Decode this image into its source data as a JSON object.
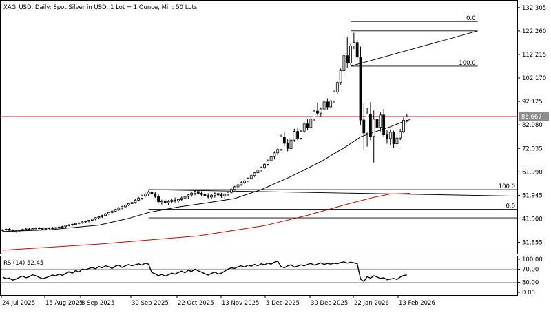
{
  "chart_data": [
    {
      "type": "candlestick",
      "title": "XAG_USD, Daily:  Spot Silver in USD, 1 Lot = 1 Ounce, Min: 50 Lots",
      "symbol": "XAG_USD",
      "timeframe": "Daily",
      "description": "Spot Silver in USD, 1 Lot = 1 Ounce, Min: 50 Lots",
      "ylim": [
        27.0,
        135.5
      ],
      "yticks": [
        "132.305",
        "122.260",
        "112.215",
        "102.170",
        "92.125",
        "82.080",
        "72.035",
        "61.990",
        "51.945",
        "41.900",
        "31.855"
      ],
      "xticks": [
        "24 Jul 2025",
        "15 Aug 2025",
        "8 Sep 2025",
        "30 Sep 2025",
        "22 Oct 2025",
        "13 Nov 2025",
        "5 Dec 2025",
        "30 Dec 2025",
        "22 Jan 2026",
        "13 Feb 2026"
      ],
      "current_price": "85.667",
      "current_price_value": 85.667,
      "grid": false,
      "colors": {
        "candle": "#000000",
        "price_line": "#b22222",
        "ma_fast": "#000000",
        "ma_slow": "#d00000",
        "price_tag_bg": "#8c8c8c"
      },
      "series": [
        {
          "kind": "ohlc",
          "values": [
            [
              36.9,
              37.6,
              36.4,
              37.2
            ],
            [
              37.2,
              38.0,
              36.9,
              37.5
            ],
            [
              37.5,
              37.9,
              36.8,
              37.0
            ],
            [
              37.0,
              37.4,
              36.2,
              36.6
            ],
            [
              36.6,
              37.1,
              36.0,
              36.8
            ],
            [
              36.8,
              37.3,
              36.3,
              37.0
            ],
            [
              37.0,
              37.7,
              36.7,
              37.4
            ],
            [
              37.4,
              38.1,
              37.1,
              37.6
            ],
            [
              37.6,
              38.0,
              37.0,
              37.3
            ],
            [
              37.3,
              37.9,
              36.9,
              37.7
            ],
            [
              37.7,
              38.3,
              37.3,
              38.0
            ],
            [
              38.0,
              38.4,
              37.4,
              37.8
            ],
            [
              37.8,
              38.2,
              37.1,
              37.5
            ],
            [
              37.5,
              38.0,
              37.0,
              37.8
            ],
            [
              37.8,
              38.3,
              37.4,
              38.1
            ],
            [
              38.1,
              38.5,
              37.5,
              37.9
            ],
            [
              37.9,
              38.4,
              37.4,
              38.2
            ],
            [
              38.2,
              38.7,
              37.8,
              38.4
            ],
            [
              38.4,
              38.9,
              38.0,
              38.6
            ],
            [
              38.6,
              39.4,
              38.2,
              39.1
            ],
            [
              39.1,
              39.6,
              38.7,
              39.3
            ],
            [
              39.3,
              39.9,
              38.8,
              39.5
            ],
            [
              39.5,
              40.2,
              39.1,
              39.9
            ],
            [
              39.9,
              40.5,
              39.4,
              40.2
            ],
            [
              40.2,
              40.8,
              39.8,
              40.6
            ],
            [
              40.6,
              41.2,
              40.1,
              40.9
            ],
            [
              40.9,
              41.5,
              40.4,
              41.3
            ],
            [
              41.3,
              42.0,
              40.9,
              41.8
            ],
            [
              41.8,
              42.6,
              41.3,
              42.4
            ],
            [
              42.4,
              43.1,
              41.9,
              42.8
            ],
            [
              42.8,
              43.6,
              42.3,
              43.3
            ],
            [
              43.3,
              44.4,
              42.9,
              44.0
            ],
            [
              44.0,
              45.0,
              43.6,
              44.6
            ],
            [
              44.6,
              45.6,
              44.1,
              45.2
            ],
            [
              45.2,
              46.2,
              44.8,
              45.9
            ],
            [
              45.9,
              46.9,
              45.4,
              46.5
            ],
            [
              46.5,
              47.5,
              46.0,
              47.1
            ],
            [
              47.1,
              48.1,
              46.6,
              47.8
            ],
            [
              47.8,
              48.8,
              47.3,
              48.4
            ],
            [
              48.4,
              49.3,
              47.8,
              48.9
            ],
            [
              48.9,
              50.3,
              48.4,
              49.9
            ],
            [
              49.9,
              51.3,
              49.3,
              50.8
            ],
            [
              50.8,
              52.2,
              50.1,
              51.7
            ],
            [
              51.7,
              53.1,
              51.0,
              52.5
            ],
            [
              52.5,
              54.0,
              51.8,
              53.3
            ],
            [
              53.3,
              54.5,
              52.0,
              52.6
            ],
            [
              52.6,
              53.4,
              50.8,
              51.4
            ],
            [
              51.4,
              52.3,
              48.9,
              49.2
            ],
            [
              49.2,
              50.1,
              48.0,
              49.6
            ],
            [
              49.6,
              50.6,
              48.4,
              48.8
            ],
            [
              48.8,
              49.9,
              47.8,
              49.3
            ],
            [
              49.3,
              50.5,
              48.6,
              49.9
            ],
            [
              49.9,
              51.0,
              48.9,
              49.5
            ],
            [
              49.5,
              50.6,
              48.8,
              50.2
            ],
            [
              50.2,
              51.4,
              49.4,
              50.8
            ],
            [
              50.8,
              52.0,
              49.8,
              51.5
            ],
            [
              51.5,
              52.6,
              50.6,
              52.1
            ],
            [
              52.1,
              53.4,
              51.3,
              52.9
            ],
            [
              52.9,
              54.1,
              52.0,
              53.6
            ],
            [
              53.6,
              54.4,
              52.4,
              52.8
            ],
            [
              52.8,
              53.7,
              51.6,
              52.3
            ],
            [
              52.3,
              53.2,
              51.1,
              51.8
            ],
            [
              51.8,
              52.8,
              50.7,
              51.2
            ],
            [
              51.2,
              52.4,
              50.3,
              52.0
            ],
            [
              52.0,
              53.2,
              51.0,
              52.7
            ],
            [
              52.7,
              53.6,
              51.7,
              52.1
            ],
            [
              52.1,
              53.0,
              50.9,
              51.6
            ],
            [
              51.6,
              52.8,
              50.6,
              52.4
            ],
            [
              52.4,
              53.6,
              51.5,
              53.2
            ],
            [
              53.2,
              54.9,
              52.7,
              54.5
            ],
            [
              54.5,
              56.0,
              54.0,
              55.6
            ],
            [
              55.6,
              57.0,
              55.0,
              56.5
            ],
            [
              56.5,
              57.9,
              56.0,
              57.4
            ],
            [
              57.4,
              58.6,
              56.8,
              58.1
            ],
            [
              58.1,
              59.6,
              57.6,
              59.2
            ],
            [
              59.2,
              60.9,
              58.7,
              60.4
            ],
            [
              60.4,
              62.1,
              59.8,
              61.6
            ],
            [
              61.6,
              63.3,
              61.0,
              62.8
            ],
            [
              62.8,
              64.3,
              62.2,
              63.9
            ],
            [
              63.9,
              65.7,
              63.3,
              65.2
            ],
            [
              65.2,
              67.3,
              64.6,
              66.8
            ],
            [
              66.8,
              69.2,
              66.1,
              68.5
            ],
            [
              68.5,
              70.8,
              67.3,
              70.1
            ],
            [
              70.1,
              72.4,
              69.0,
              71.6
            ],
            [
              71.6,
              77.9,
              71.0,
              77.0
            ],
            [
              77.0,
              79.2,
              73.0,
              74.2
            ],
            [
              74.2,
              76.0,
              70.8,
              72.0
            ],
            [
              72.0,
              76.5,
              71.0,
              75.6
            ],
            [
              75.6,
              80.4,
              74.8,
              79.3
            ],
            [
              79.3,
              81.0,
              75.5,
              76.4
            ],
            [
              76.4,
              80.1,
              75.8,
              79.4
            ],
            [
              79.4,
              83.2,
              78.6,
              82.5
            ],
            [
              82.5,
              84.6,
              79.8,
              81.0
            ],
            [
              81.0,
              85.3,
              80.3,
              84.7
            ],
            [
              84.7,
              88.6,
              83.9,
              88.0
            ],
            [
              88.0,
              91.5,
              86.2,
              87.1
            ],
            [
              87.1,
              89.6,
              85.8,
              88.9
            ],
            [
              88.9,
              92.8,
              88.1,
              91.9
            ],
            [
              91.9,
              93.5,
              88.6,
              89.8
            ],
            [
              89.8,
              92.9,
              89.1,
              92.3
            ],
            [
              92.3,
              96.8,
              91.6,
              96.1
            ],
            [
              96.1,
              101.0,
              95.4,
              100.2
            ],
            [
              100.2,
              106.2,
              99.3,
              105.3
            ],
            [
              105.3,
              112.8,
              104.6,
              111.7
            ],
            [
              111.7,
              119.6,
              106.6,
              108.5
            ],
            [
              108.5,
              116.8,
              107.6,
              115.9
            ],
            [
              115.9,
              121.5,
              114.6,
              117.3
            ],
            [
              117.3,
              118.5,
              110.2,
              111.1
            ],
            [
              111.1,
              115.6,
              82.0,
              84.2
            ],
            [
              84.2,
              91.2,
              71.5,
              78.6
            ],
            [
              78.6,
              89.5,
              72.8,
              86.7
            ],
            [
              86.7,
              91.8,
              75.6,
              77.2
            ],
            [
              77.2,
              88.2,
              66.0,
              84.5
            ],
            [
              84.5,
              89.3,
              80.0,
              81.1
            ],
            [
              81.1,
              87.6,
              79.3,
              86.3
            ],
            [
              86.3,
              88.9,
              77.0,
              77.8
            ],
            [
              77.8,
              79.8,
              74.0,
              76.3
            ],
            [
              76.3,
              80.2,
              73.5,
              78.9
            ],
            [
              78.9,
              79.6,
              72.2,
              74.0
            ],
            [
              74.0,
              77.6,
              72.6,
              76.5
            ],
            [
              76.5,
              80.4,
              75.6,
              79.2
            ],
            [
              79.2,
              85.4,
              78.6,
              84.1
            ],
            [
              84.1,
              86.9,
              83.2,
              85.667
            ]
          ]
        },
        {
          "kind": "moving-average",
          "period": "fast",
          "values": [
            [
              0,
              36.5
            ],
            [
              14,
              37.2
            ],
            [
              29,
              39.2
            ],
            [
              38,
              42.1
            ],
            [
              44,
              44.6
            ],
            [
              53,
              47.0
            ],
            [
              61,
              48.6
            ],
            [
              70,
              50.6
            ],
            [
              78,
              54.4
            ],
            [
              87,
              60.0
            ],
            [
              96,
              66.4
            ],
            [
              104,
              73.1
            ],
            [
              108,
              77.0
            ],
            [
              113,
              79.4
            ],
            [
              117,
              81.3
            ],
            [
              120,
              83.0
            ],
            [
              123,
              84.4
            ]
          ]
        },
        {
          "kind": "moving-average",
          "period": "slow",
          "values": [
            [
              0,
              28.5
            ],
            [
              29,
              31.1
            ],
            [
              59,
              34.6
            ],
            [
              79,
              39.0
            ],
            [
              92,
              43.4
            ],
            [
              104,
              48.2
            ],
            [
              112,
              51.1
            ],
            [
              117,
              52.5
            ],
            [
              123,
              52.8
            ]
          ]
        }
      ],
      "fibonacci": [
        {
          "anchor_start": [
            44,
            54.4
          ],
          "anchor_end": [
            123,
            51.6
          ],
          "levels": [
            {
              "label": "100.0",
              "value": 54.4
            },
            {
              "label": "0.0",
              "value": 46.0
            },
            {
              "label": "",
              "value": 42.3
            }
          ]
        },
        {
          "anchor_start": [
            105,
            107.2
          ],
          "anchor_end": [
            123,
            122.3
          ],
          "levels": [
            {
              "label": "0.0",
              "value": 126.3
            },
            {
              "label": "",
              "value": 122.3
            },
            {
              "label": "100.0",
              "value": 107.2
            }
          ]
        }
      ]
    },
    {
      "type": "line",
      "title": "RSI(14) 52.45",
      "indicator": "RSI",
      "period": 14,
      "current_value": 52.45,
      "ylim": [
        0,
        100
      ],
      "yticks": [
        "100.00",
        "70.00",
        "30.00",
        "0.00"
      ],
      "levels": [
        70,
        30
      ],
      "colors": {
        "line": "#000000",
        "level": "#aaaaaa"
      },
      "values": [
        46,
        41,
        43,
        37,
        40,
        45,
        49,
        44,
        47,
        53,
        50,
        45,
        41,
        44,
        48,
        52,
        50,
        55,
        51,
        57,
        62,
        58,
        66,
        61,
        70,
        68,
        72,
        75,
        71,
        78,
        74,
        80,
        77,
        72,
        79,
        82,
        75,
        80,
        84,
        80,
        83,
        86,
        82,
        88,
        85,
        60,
        56,
        50,
        54,
        49,
        53,
        58,
        55,
        60,
        64,
        59,
        67,
        63,
        70,
        65,
        61,
        56,
        52,
        57,
        61,
        55,
        58,
        64,
        70,
        74,
        72,
        77,
        80,
        76,
        82,
        79,
        84,
        80,
        86,
        83,
        88,
        85,
        91,
        94,
        78,
        74,
        80,
        83,
        76,
        79,
        83,
        80,
        84,
        87,
        82,
        85,
        89,
        84,
        87,
        85,
        88,
        86,
        90,
        92,
        88,
        91,
        89,
        86,
        40,
        33,
        47,
        43,
        50,
        46,
        42,
        44,
        38,
        40,
        42,
        39,
        46,
        51,
        52.45
      ]
    }
  ]
}
